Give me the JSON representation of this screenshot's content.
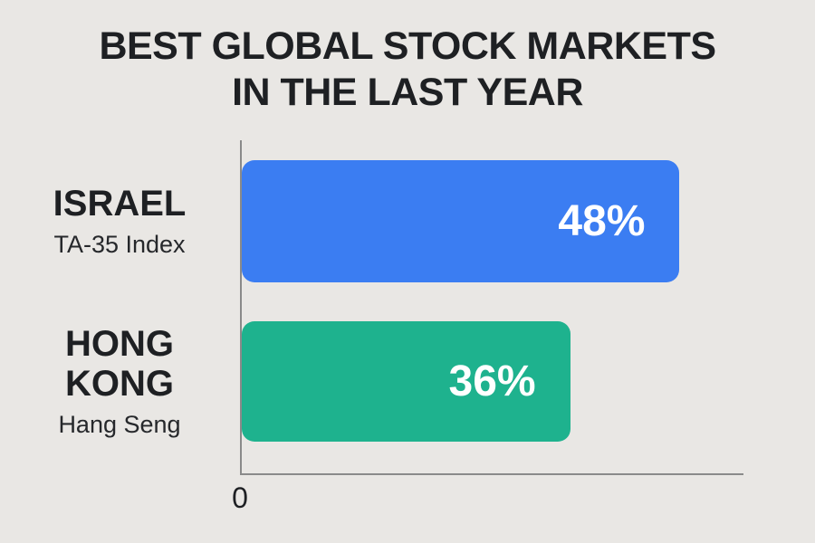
{
  "title": {
    "lines": [
      "BEST GLOBAL STOCK MARKETS",
      "IN THE LAST YEAR"
    ]
  },
  "chart_data": {
    "type": "bar",
    "orientation": "horizontal",
    "title": "BEST GLOBAL STOCK MARKETS IN THE LAST YEAR",
    "categories": [
      "ISRAEL",
      "HONG KONG"
    ],
    "sublabels": [
      "TA-35 Index",
      "Hang Seng"
    ],
    "values": [
      48,
      36
    ],
    "value_labels": [
      "48%",
      "36%"
    ],
    "unit": "%",
    "xlim": [
      0,
      55
    ],
    "x_origin_label": "0",
    "grid": false,
    "legend": "none",
    "bar_colors": [
      "#3b7df2",
      "#1eb28e"
    ]
  },
  "colors": {
    "background": "#e9e7e4",
    "axis": "#8a8a8a",
    "text": "#1e2023",
    "value_text": "#ffffff"
  }
}
